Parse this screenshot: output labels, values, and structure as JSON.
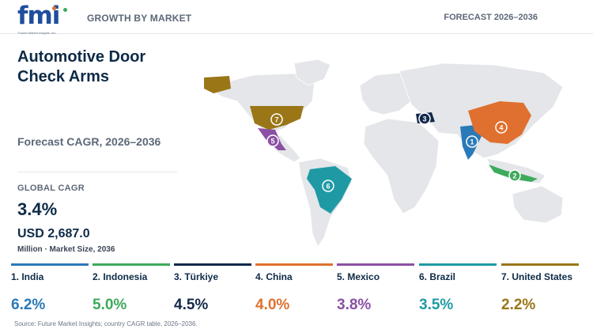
{
  "header": {
    "logo_text": "fmi",
    "logo_tagline": "Future Market Insights, Inc.",
    "section": "GROWTH BY MARKET",
    "forecast": "FORECAST 2026–2036"
  },
  "panel": {
    "title_line1": "Automotive Door",
    "title_line2": "Check Arms",
    "subtitle": "Forecast CAGR, 2026–2036",
    "global_cagr_label": "GLOBAL CAGR",
    "global_cagr_value": "3.4%",
    "market_size_value": "USD 2,687.0",
    "market_size_note": "Million · Market Size, 2036"
  },
  "colors": {
    "land": "#e4e6e9",
    "text_dark": "#0e2a47",
    "logo_blue": "#1f4e9c"
  },
  "chart_data": {
    "type": "table",
    "title": "Automotive Door Check Arms",
    "subtitle": "Forecast CAGR, 2026–2036",
    "unit": "%",
    "categories": [
      "India",
      "Indonesia",
      "Türkiye",
      "China",
      "Mexico",
      "Brazil",
      "United States"
    ],
    "values": [
      6.2,
      5.0,
      4.5,
      4.0,
      3.8,
      3.5,
      2.2
    ],
    "global_cagr": 3.4,
    "market_size_2036_usd_million": 2687.0,
    "items": [
      {
        "rank": "1",
        "name": "1. India",
        "value": "6.2%",
        "color": "#2a7ab8"
      },
      {
        "rank": "2",
        "name": "2. Indonesia",
        "value": "5.0%",
        "color": "#3daa5c"
      },
      {
        "rank": "3",
        "name": "3. Türkiye",
        "value": "4.5%",
        "color": "#13294b"
      },
      {
        "rank": "4",
        "name": "4. China",
        "value": "4.0%",
        "color": "#e0702f"
      },
      {
        "rank": "5",
        "name": "5. Mexico",
        "value": "3.8%",
        "color": "#8b50a4"
      },
      {
        "rank": "6",
        "name": "6. Brazil",
        "value": "3.5%",
        "color": "#1f9aa5"
      },
      {
        "rank": "7",
        "name": "7. United States",
        "value": "2.2%",
        "color": "#9a7617"
      }
    ]
  },
  "footer": {
    "source": "Source: Future Market Insights; country CAGR table, 2026–2036."
  }
}
